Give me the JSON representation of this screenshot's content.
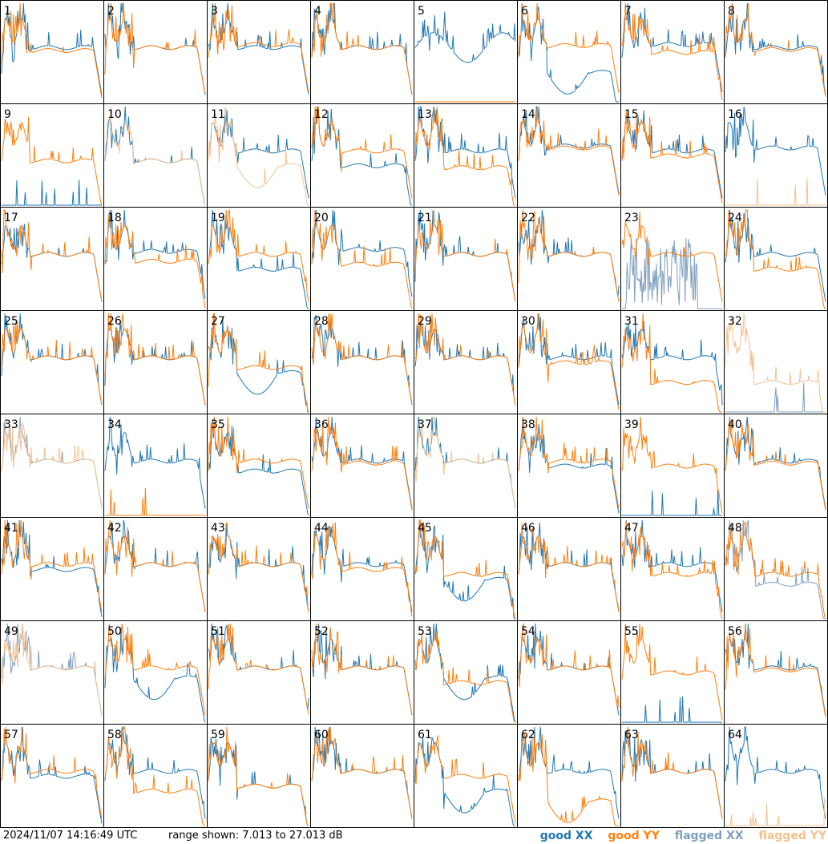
{
  "footer": {
    "timestamp": "2024/11/07 14:16:49 UTC",
    "range_text": "range shown: 7.013 to 27.013 dB",
    "legend": {
      "good_xx": "good XX",
      "good_yy": "good YY",
      "flagged_xx": "flagged XX",
      "flagged_yy": "flagged YY"
    }
  },
  "colors": {
    "good_xx": "#1f77b4",
    "good_yy": "#ff7f0e",
    "flagged_xx": "#7f9fbf",
    "flagged_yy": "#f5c08f"
  },
  "chart_data": {
    "type": "line",
    "layout": "8x8 small multiples",
    "y_range_db": [
      7.013,
      27.013
    ],
    "panels": [
      {
        "label": "1",
        "xx": {
          "state": "good",
          "shape": "normal",
          "level": 0.55
        },
        "yy": {
          "state": "good",
          "shape": "normal",
          "level": 0.52
        }
      },
      {
        "label": "2",
        "xx": {
          "state": "good",
          "shape": "normal",
          "level": 0.55
        },
        "yy": {
          "state": "good",
          "shape": "normal",
          "level": 0.55
        }
      },
      {
        "label": "3",
        "xx": {
          "state": "good",
          "shape": "normal",
          "level": 0.55
        },
        "yy": {
          "state": "good",
          "shape": "normal",
          "level": 0.58
        }
      },
      {
        "label": "4",
        "xx": {
          "state": "good",
          "shape": "normal",
          "level": 0.55
        },
        "yy": {
          "state": "good",
          "shape": "normal",
          "level": 0.55
        }
      },
      {
        "label": "5",
        "xx": {
          "state": "good",
          "shape": "wavy",
          "level": 0.55
        },
        "yy": {
          "state": "good",
          "shape": "flat_zero",
          "level": 0.0
        }
      },
      {
        "label": "6",
        "xx": {
          "state": "good",
          "shape": "dip",
          "level": 0.3
        },
        "yy": {
          "state": "good",
          "shape": "normal",
          "level": 0.57
        }
      },
      {
        "label": "7",
        "xx": {
          "state": "good",
          "shape": "normal",
          "level": 0.58
        },
        "yy": {
          "state": "good",
          "shape": "normal",
          "level": 0.5
        }
      },
      {
        "label": "8",
        "xx": {
          "state": "good",
          "shape": "normal",
          "level": 0.55
        },
        "yy": {
          "state": "good",
          "shape": "normal",
          "level": 0.53
        }
      },
      {
        "label": "9",
        "xx": {
          "state": "good",
          "shape": "spikes_low",
          "level": 0.05
        },
        "yy": {
          "state": "good",
          "shape": "normal",
          "level": 0.45
        }
      },
      {
        "label": "10",
        "xx": {
          "state": "good",
          "shape": "normal",
          "level": 0.45
        },
        "yy": {
          "state": "flagged",
          "shape": "normal",
          "level": 0.45
        }
      },
      {
        "label": "11",
        "xx": {
          "state": "good",
          "shape": "normal",
          "level": 0.55
        },
        "yy": {
          "state": "flagged",
          "shape": "dip",
          "level": 0.4
        }
      },
      {
        "label": "12",
        "xx": {
          "state": "good",
          "shape": "normal",
          "level": 0.4
        },
        "yy": {
          "state": "good",
          "shape": "normal",
          "level": 0.55
        }
      },
      {
        "label": "13",
        "xx": {
          "state": "good",
          "shape": "normal",
          "level": 0.55
        },
        "yy": {
          "state": "good",
          "shape": "normal",
          "level": 0.38
        }
      },
      {
        "label": "14",
        "xx": {
          "state": "good",
          "shape": "normal",
          "level": 0.6
        },
        "yy": {
          "state": "good",
          "shape": "normal",
          "level": 0.58
        }
      },
      {
        "label": "15",
        "xx": {
          "state": "good",
          "shape": "normal",
          "level": 0.55
        },
        "yy": {
          "state": "good",
          "shape": "normal",
          "level": 0.5
        }
      },
      {
        "label": "16",
        "xx": {
          "state": "good",
          "shape": "normal",
          "level": 0.58
        },
        "yy": {
          "state": "flagged",
          "shape": "spikes_low",
          "level": 0.0
        }
      },
      {
        "label": "17",
        "xx": {
          "state": "good",
          "shape": "normal",
          "level": 0.55
        },
        "yy": {
          "state": "good",
          "shape": "normal",
          "level": 0.55
        }
      },
      {
        "label": "18",
        "xx": {
          "state": "good",
          "shape": "normal",
          "level": 0.58
        },
        "yy": {
          "state": "good",
          "shape": "normal",
          "level": 0.48
        }
      },
      {
        "label": "19",
        "xx": {
          "state": "good",
          "shape": "normal",
          "level": 0.4
        },
        "yy": {
          "state": "good",
          "shape": "normal",
          "level": 0.55
        }
      },
      {
        "label": "20",
        "xx": {
          "state": "good",
          "shape": "normal",
          "level": 0.6
        },
        "yy": {
          "state": "good",
          "shape": "normal",
          "level": 0.45
        }
      },
      {
        "label": "21",
        "xx": {
          "state": "good",
          "shape": "normal",
          "level": 0.55
        },
        "yy": {
          "state": "good",
          "shape": "normal",
          "level": 0.55
        }
      },
      {
        "label": "22",
        "xx": {
          "state": "good",
          "shape": "normal",
          "level": 0.55
        },
        "yy": {
          "state": "good",
          "shape": "normal",
          "level": 0.55
        }
      },
      {
        "label": "23",
        "xx": {
          "state": "flagged",
          "shape": "noisy",
          "level": 0.35
        },
        "yy": {
          "state": "good",
          "shape": "normal",
          "level": 0.55
        }
      },
      {
        "label": "24",
        "xx": {
          "state": "good",
          "shape": "normal",
          "level": 0.55
        },
        "yy": {
          "state": "good",
          "shape": "normal",
          "level": 0.4
        }
      },
      {
        "label": "25",
        "xx": {
          "state": "good",
          "shape": "normal",
          "level": 0.55
        },
        "yy": {
          "state": "good",
          "shape": "normal",
          "level": 0.55
        }
      },
      {
        "label": "26",
        "xx": {
          "state": "good",
          "shape": "normal",
          "level": 0.55
        },
        "yy": {
          "state": "good",
          "shape": "normal",
          "level": 0.55
        }
      },
      {
        "label": "27",
        "xx": {
          "state": "good",
          "shape": "dip",
          "level": 0.4
        },
        "yy": {
          "state": "good",
          "shape": "normal",
          "level": 0.45
        }
      },
      {
        "label": "28",
        "xx": {
          "state": "good",
          "shape": "normal",
          "level": 0.55
        },
        "yy": {
          "state": "good",
          "shape": "normal",
          "level": 0.55
        }
      },
      {
        "label": "29",
        "xx": {
          "state": "good",
          "shape": "normal",
          "level": 0.55
        },
        "yy": {
          "state": "good",
          "shape": "normal",
          "level": 0.55
        }
      },
      {
        "label": "30",
        "xx": {
          "state": "good",
          "shape": "normal",
          "level": 0.55
        },
        "yy": {
          "state": "good",
          "shape": "normal",
          "level": 0.5
        }
      },
      {
        "label": "31",
        "xx": {
          "state": "good",
          "shape": "normal",
          "level": 0.55
        },
        "yy": {
          "state": "good",
          "shape": "normal",
          "level": 0.3
        }
      },
      {
        "label": "32",
        "xx": {
          "state": "flagged",
          "shape": "spikes_low",
          "level": 0.0
        },
        "yy": {
          "state": "flagged",
          "shape": "normal",
          "level": 0.3
        }
      },
      {
        "label": "33",
        "xx": {
          "state": "flagged",
          "shape": "normal",
          "level": 0.55
        },
        "yy": {
          "state": "flagged",
          "shape": "normal",
          "level": 0.55
        }
      },
      {
        "label": "34",
        "xx": {
          "state": "good",
          "shape": "normal",
          "level": 0.55
        },
        "yy": {
          "state": "good",
          "shape": "spikes_low",
          "level": 0.05
        }
      },
      {
        "label": "35",
        "xx": {
          "state": "good",
          "shape": "normal",
          "level": 0.45
        },
        "yy": {
          "state": "good",
          "shape": "normal",
          "level": 0.55
        }
      },
      {
        "label": "36",
        "xx": {
          "state": "good",
          "shape": "normal",
          "level": 0.55
        },
        "yy": {
          "state": "good",
          "shape": "normal",
          "level": 0.53
        }
      },
      {
        "label": "37",
        "xx": {
          "state": "good",
          "shape": "normal",
          "level": 0.55
        },
        "yy": {
          "state": "flagged",
          "shape": "normal",
          "level": 0.55
        }
      },
      {
        "label": "38",
        "xx": {
          "state": "good",
          "shape": "normal",
          "level": 0.5
        },
        "yy": {
          "state": "good",
          "shape": "normal",
          "level": 0.55
        }
      },
      {
        "label": "39",
        "xx": {
          "state": "good",
          "shape": "spikes_low",
          "level": 0.0
        },
        "yy": {
          "state": "good",
          "shape": "normal",
          "level": 0.5
        }
      },
      {
        "label": "40",
        "xx": {
          "state": "good",
          "shape": "normal",
          "level": 0.55
        },
        "yy": {
          "state": "good",
          "shape": "normal",
          "level": 0.53
        }
      },
      {
        "label": "41",
        "xx": {
          "state": "good",
          "shape": "normal",
          "level": 0.5
        },
        "yy": {
          "state": "good",
          "shape": "normal",
          "level": 0.55
        }
      },
      {
        "label": "42",
        "xx": {
          "state": "good",
          "shape": "normal",
          "level": 0.55
        },
        "yy": {
          "state": "good",
          "shape": "normal",
          "level": 0.55
        }
      },
      {
        "label": "43",
        "xx": {
          "state": "good",
          "shape": "normal",
          "level": 0.55
        },
        "yy": {
          "state": "good",
          "shape": "normal",
          "level": 0.55
        }
      },
      {
        "label": "44",
        "xx": {
          "state": "good",
          "shape": "normal",
          "level": 0.55
        },
        "yy": {
          "state": "good",
          "shape": "normal",
          "level": 0.5
        }
      },
      {
        "label": "45",
        "xx": {
          "state": "good",
          "shape": "dip",
          "level": 0.4
        },
        "yy": {
          "state": "good",
          "shape": "normal",
          "level": 0.45
        }
      },
      {
        "label": "46",
        "xx": {
          "state": "good",
          "shape": "normal",
          "level": 0.55
        },
        "yy": {
          "state": "good",
          "shape": "normal",
          "level": 0.55
        }
      },
      {
        "label": "47",
        "xx": {
          "state": "good",
          "shape": "normal",
          "level": 0.55
        },
        "yy": {
          "state": "good",
          "shape": "normal",
          "level": 0.45
        }
      },
      {
        "label": "48",
        "xx": {
          "state": "flagged",
          "shape": "normal",
          "level": 0.35
        },
        "yy": {
          "state": "good",
          "shape": "normal",
          "level": 0.45
        }
      },
      {
        "label": "49",
        "xx": {
          "state": "flagged",
          "shape": "normal",
          "level": 0.55
        },
        "yy": {
          "state": "flagged",
          "shape": "normal",
          "level": 0.55
        }
      },
      {
        "label": "50",
        "xx": {
          "state": "good",
          "shape": "dip",
          "level": 0.45
        },
        "yy": {
          "state": "good",
          "shape": "normal",
          "level": 0.55
        }
      },
      {
        "label": "51",
        "xx": {
          "state": "good",
          "shape": "normal",
          "level": 0.55
        },
        "yy": {
          "state": "good",
          "shape": "normal",
          "level": 0.55
        }
      },
      {
        "label": "52",
        "xx": {
          "state": "good",
          "shape": "normal",
          "level": 0.55
        },
        "yy": {
          "state": "good",
          "shape": "normal",
          "level": 0.55
        }
      },
      {
        "label": "53",
        "xx": {
          "state": "good",
          "shape": "dip",
          "level": 0.45
        },
        "yy": {
          "state": "good",
          "shape": "normal",
          "level": 0.4
        }
      },
      {
        "label": "54",
        "xx": {
          "state": "good",
          "shape": "normal",
          "level": 0.55
        },
        "yy": {
          "state": "good",
          "shape": "normal",
          "level": 0.55
        }
      },
      {
        "label": "55",
        "xx": {
          "state": "good",
          "shape": "spikes_low",
          "level": 0.05
        },
        "yy": {
          "state": "good",
          "shape": "normal",
          "level": 0.5
        }
      },
      {
        "label": "56",
        "xx": {
          "state": "good",
          "shape": "normal",
          "level": 0.55
        },
        "yy": {
          "state": "good",
          "shape": "normal",
          "level": 0.53
        }
      },
      {
        "label": "57",
        "xx": {
          "state": "good",
          "shape": "normal",
          "level": 0.5
        },
        "yy": {
          "state": "good",
          "shape": "normal",
          "level": 0.55
        }
      },
      {
        "label": "58",
        "xx": {
          "state": "good",
          "shape": "normal",
          "level": 0.55
        },
        "yy": {
          "state": "good",
          "shape": "normal",
          "level": 0.35
        }
      },
      {
        "label": "59",
        "xx": {
          "state": "good",
          "shape": "normal",
          "level": 0.4
        },
        "yy": {
          "state": "good",
          "shape": "normal",
          "level": 0.4
        }
      },
      {
        "label": "60",
        "xx": {
          "state": "good",
          "shape": "normal",
          "level": 0.55
        },
        "yy": {
          "state": "good",
          "shape": "normal",
          "level": 0.55
        }
      },
      {
        "label": "61",
        "xx": {
          "state": "good",
          "shape": "dip",
          "level": 0.35
        },
        "yy": {
          "state": "good",
          "shape": "normal",
          "level": 0.5
        }
      },
      {
        "label": "62",
        "xx": {
          "state": "good",
          "shape": "normal",
          "level": 0.55
        },
        "yy": {
          "state": "good",
          "shape": "dip",
          "level": 0.25
        }
      },
      {
        "label": "63",
        "xx": {
          "state": "good",
          "shape": "normal",
          "level": 0.55
        },
        "yy": {
          "state": "good",
          "shape": "normal",
          "level": 0.55
        }
      },
      {
        "label": "64",
        "xx": {
          "state": "good",
          "shape": "normal",
          "level": 0.55
        },
        "yy": {
          "state": "flagged",
          "shape": "spikes_low",
          "level": 0.0
        }
      }
    ]
  }
}
